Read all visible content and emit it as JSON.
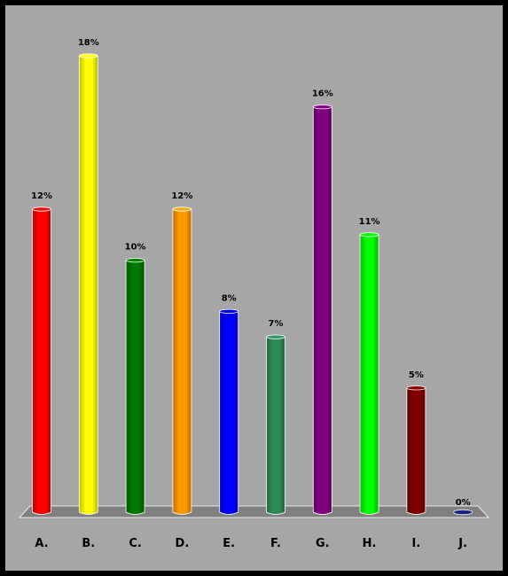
{
  "chart_data": {
    "type": "bar",
    "categories": [
      "A.",
      "B.",
      "C.",
      "D.",
      "E.",
      "F.",
      "G.",
      "H.",
      "I.",
      "J."
    ],
    "values": [
      12,
      18,
      10,
      12,
      8,
      7,
      16,
      11,
      5,
      0
    ],
    "data_labels": [
      "12%",
      "18%",
      "10%",
      "12%",
      "8%",
      "7%",
      "16%",
      "11%",
      "5%",
      "0%"
    ],
    "colors": [
      "#ff0000",
      "#ffff00",
      "#007a00",
      "#ff9900",
      "#0000ff",
      "#2e8b57",
      "#800080",
      "#00ff00",
      "#800000",
      "#1a237e"
    ],
    "ylim": [
      0,
      18
    ],
    "grid": false,
    "legend": "none",
    "background": "#a6a6a6",
    "floor_color": "#808080"
  }
}
